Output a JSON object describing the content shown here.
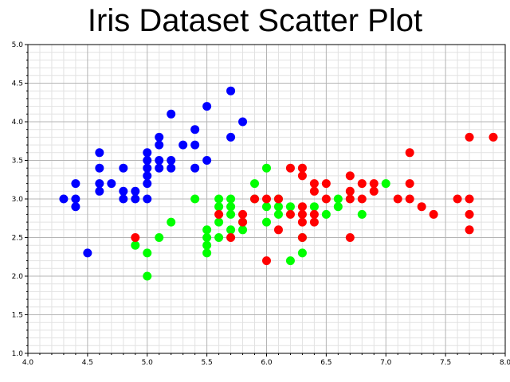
{
  "chart_data": {
    "type": "scatter",
    "title": "Iris Dataset Scatter Plot",
    "xlabel": "",
    "ylabel": "",
    "xlim": [
      4.0,
      8.0
    ],
    "ylim": [
      1.0,
      5.0
    ],
    "x_ticks": [
      "4.0",
      "4.5",
      "5.0",
      "5.5",
      "6.0",
      "6.5",
      "7.0",
      "7.5",
      "8.0"
    ],
    "y_ticks": [
      "1.0",
      "1.5",
      "2.0",
      "2.5",
      "3.0",
      "3.5",
      "4.0",
      "4.5",
      "5.0"
    ],
    "grid": true,
    "legend": "none",
    "series": [
      {
        "color": "#0000ff",
        "points": [
          [
            4.3,
            3.0
          ],
          [
            4.4,
            3.2
          ],
          [
            4.4,
            3.0
          ],
          [
            4.4,
            2.9
          ],
          [
            4.5,
            2.3
          ],
          [
            4.6,
            3.6
          ],
          [
            4.6,
            3.4
          ],
          [
            4.6,
            3.2
          ],
          [
            4.6,
            3.1
          ],
          [
            4.7,
            3.2
          ],
          [
            4.8,
            3.4
          ],
          [
            4.8,
            3.1
          ],
          [
            4.8,
            3.0
          ],
          [
            4.9,
            3.1
          ],
          [
            4.9,
            3.0
          ],
          [
            5.0,
            3.6
          ],
          [
            5.0,
            3.5
          ],
          [
            5.0,
            3.4
          ],
          [
            5.0,
            3.3
          ],
          [
            5.0,
            3.2
          ],
          [
            5.0,
            3.0
          ],
          [
            5.1,
            3.8
          ],
          [
            5.1,
            3.7
          ],
          [
            5.1,
            3.5
          ],
          [
            5.1,
            3.4
          ],
          [
            5.2,
            4.1
          ],
          [
            5.2,
            3.5
          ],
          [
            5.2,
            3.4
          ],
          [
            5.3,
            3.7
          ],
          [
            5.4,
            3.9
          ],
          [
            5.4,
            3.7
          ],
          [
            5.4,
            3.4
          ],
          [
            5.5,
            4.2
          ],
          [
            5.5,
            3.5
          ],
          [
            5.7,
            4.4
          ],
          [
            5.7,
            3.8
          ],
          [
            5.8,
            4.0
          ]
        ]
      },
      {
        "color": "#00ff00",
        "points": [
          [
            4.9,
            2.4
          ],
          [
            5.0,
            2.3
          ],
          [
            5.0,
            2.0
          ],
          [
            5.1,
            2.5
          ],
          [
            5.2,
            2.7
          ],
          [
            5.4,
            3.0
          ],
          [
            5.5,
            2.6
          ],
          [
            5.5,
            2.5
          ],
          [
            5.5,
            2.4
          ],
          [
            5.5,
            2.3
          ],
          [
            5.6,
            3.0
          ],
          [
            5.6,
            2.9
          ],
          [
            5.6,
            2.7
          ],
          [
            5.6,
            2.5
          ],
          [
            5.7,
            3.0
          ],
          [
            5.7,
            2.9
          ],
          [
            5.7,
            2.8
          ],
          [
            5.7,
            2.6
          ],
          [
            5.8,
            2.7
          ],
          [
            5.8,
            2.6
          ],
          [
            5.9,
            3.2
          ],
          [
            5.9,
            3.0
          ],
          [
            6.0,
            3.4
          ],
          [
            6.0,
            2.9
          ],
          [
            6.0,
            2.7
          ],
          [
            6.1,
            3.0
          ],
          [
            6.1,
            2.9
          ],
          [
            6.1,
            2.8
          ],
          [
            6.2,
            2.9
          ],
          [
            6.2,
            2.2
          ],
          [
            6.3,
            2.3
          ],
          [
            6.3,
            2.5
          ],
          [
            6.4,
            2.9
          ],
          [
            6.5,
            2.8
          ],
          [
            6.6,
            3.0
          ],
          [
            6.6,
            2.9
          ],
          [
            6.8,
            2.8
          ],
          [
            7.0,
            3.2
          ]
        ]
      },
      {
        "color": "#ff0000",
        "points": [
          [
            4.9,
            2.5
          ],
          [
            5.6,
            2.8
          ],
          [
            5.7,
            2.5
          ],
          [
            5.8,
            2.8
          ],
          [
            5.8,
            2.7
          ],
          [
            5.9,
            3.0
          ],
          [
            6.0,
            3.0
          ],
          [
            6.0,
            2.2
          ],
          [
            6.1,
            3.0
          ],
          [
            6.1,
            2.6
          ],
          [
            6.2,
            3.4
          ],
          [
            6.2,
            2.8
          ],
          [
            6.3,
            3.4
          ],
          [
            6.3,
            3.3
          ],
          [
            6.3,
            2.9
          ],
          [
            6.3,
            2.8
          ],
          [
            6.3,
            2.7
          ],
          [
            6.3,
            2.5
          ],
          [
            6.4,
            3.2
          ],
          [
            6.4,
            3.1
          ],
          [
            6.4,
            2.8
          ],
          [
            6.4,
            2.7
          ],
          [
            6.5,
            3.2
          ],
          [
            6.5,
            3.0
          ],
          [
            6.7,
            3.3
          ],
          [
            6.7,
            3.1
          ],
          [
            6.7,
            3.0
          ],
          [
            6.7,
            2.5
          ],
          [
            6.8,
            3.2
          ],
          [
            6.8,
            3.0
          ],
          [
            6.9,
            3.2
          ],
          [
            6.9,
            3.1
          ],
          [
            7.1,
            3.0
          ],
          [
            7.2,
            3.6
          ],
          [
            7.2,
            3.2
          ],
          [
            7.2,
            3.0
          ],
          [
            7.3,
            2.9
          ],
          [
            7.4,
            2.8
          ],
          [
            7.6,
            3.0
          ],
          [
            7.7,
            3.8
          ],
          [
            7.7,
            3.0
          ],
          [
            7.7,
            2.8
          ],
          [
            7.7,
            2.6
          ],
          [
            7.9,
            3.8
          ]
        ]
      }
    ]
  }
}
